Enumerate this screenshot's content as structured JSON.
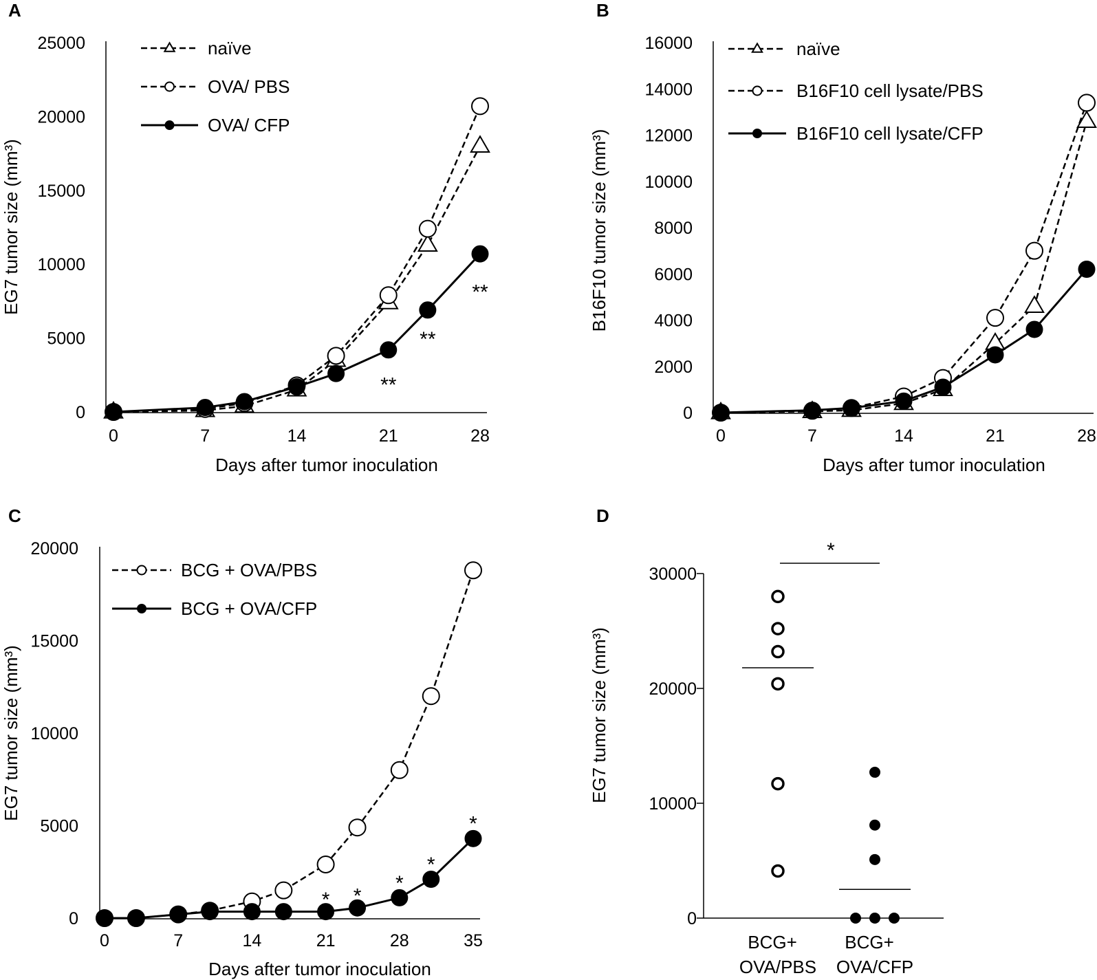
{
  "chart_data": [
    {
      "panel": "A",
      "type": "line",
      "xlabel": "Days after tumor inoculation",
      "ylabel": "EG7 tumor size (mm³)",
      "xlim": [
        0,
        28
      ],
      "ylim": [
        0,
        25000
      ],
      "xticks": [
        "0",
        "7",
        "14",
        "21",
        "28"
      ],
      "yticks": [
        "0",
        "5000",
        "10000",
        "15000",
        "20000",
        "25000"
      ],
      "series": [
        {
          "name": "naïve",
          "marker": "triangle",
          "style": "dashed",
          "x": [
            0,
            7,
            10,
            14,
            17,
            21,
            24,
            28
          ],
          "y": [
            0,
            100,
            400,
            1500,
            3500,
            7400,
            11300,
            18000
          ]
        },
        {
          "name": "OVA/ PBS",
          "marker": "circle-open",
          "style": "dashed",
          "x": [
            0,
            7,
            10,
            14,
            17,
            21,
            24,
            28
          ],
          "y": [
            0,
            200,
            600,
            1800,
            3800,
            7900,
            12400,
            20700
          ]
        },
        {
          "name": "OVA/ CFP",
          "marker": "circle-filled",
          "style": "solid",
          "x": [
            0,
            7,
            10,
            14,
            17,
            21,
            24,
            28
          ],
          "y": [
            0,
            300,
            700,
            1700,
            2600,
            4200,
            6900,
            10700
          ]
        }
      ],
      "annotations": [
        {
          "text": "**",
          "x": 21,
          "y": 2200
        },
        {
          "text": "**",
          "x": 24,
          "y": 5300
        },
        {
          "text": "**",
          "x": 28,
          "y": 8500
        }
      ]
    },
    {
      "panel": "B",
      "type": "line",
      "xlabel": "Days after tumor inoculation",
      "ylabel": "B16F10 tumor size (mm³)",
      "xlim": [
        0,
        28
      ],
      "ylim": [
        0,
        16000
      ],
      "xticks": [
        "0",
        "7",
        "14",
        "21",
        "28"
      ],
      "yticks": [
        "0",
        "2000",
        "4000",
        "6000",
        "8000",
        "10000",
        "12000",
        "14000",
        "16000"
      ],
      "series": [
        {
          "name": "naïve",
          "marker": "triangle",
          "style": "dashed",
          "x": [
            0,
            7,
            10,
            14,
            17,
            21,
            24,
            28
          ],
          "y": [
            0,
            50,
            100,
            400,
            1000,
            3000,
            4600,
            12600
          ]
        },
        {
          "name": "B16F10 cell lysate/PBS",
          "marker": "circle-open",
          "style": "dashed",
          "x": [
            0,
            7,
            10,
            14,
            17,
            21,
            24,
            28
          ],
          "y": [
            0,
            80,
            200,
            700,
            1500,
            4100,
            7000,
            13400
          ]
        },
        {
          "name": "B16F10 cell lysate/CFP",
          "marker": "circle-filled",
          "style": "solid",
          "x": [
            0,
            7,
            10,
            14,
            17,
            21,
            24,
            28
          ],
          "y": [
            0,
            100,
            200,
            500,
            1100,
            2500,
            3600,
            6200
          ]
        }
      ]
    },
    {
      "panel": "C",
      "type": "line",
      "xlabel": "Days after tumor inoculation",
      "ylabel": "EG7 tumor size (mm³)",
      "xlim": [
        0,
        35
      ],
      "ylim": [
        0,
        20000
      ],
      "xticks": [
        "0",
        "7",
        "14",
        "21",
        "28",
        "35"
      ],
      "yticks": [
        "0",
        "5000",
        "10000",
        "15000",
        "20000"
      ],
      "series": [
        {
          "name": "BCG + OVA/PBS",
          "marker": "circle-open",
          "style": "dashed",
          "x": [
            0,
            3,
            7,
            10,
            14,
            17,
            21,
            24,
            28,
            31,
            35
          ],
          "y": [
            0,
            0,
            200,
            400,
            900,
            1500,
            2900,
            4900,
            8000,
            12000,
            18800
          ]
        },
        {
          "name": "BCG + OVA/CFP",
          "marker": "circle-filled",
          "style": "solid",
          "x": [
            0,
            3,
            7,
            10,
            14,
            17,
            21,
            24,
            28,
            31,
            35
          ],
          "y": [
            0,
            0,
            200,
            350,
            350,
            350,
            350,
            550,
            1100,
            2100,
            4300
          ]
        }
      ],
      "annotations": [
        {
          "text": "*",
          "x": 21,
          "y": 1300
        },
        {
          "text": "*",
          "x": 24,
          "y": 1500
        },
        {
          "text": "*",
          "x": 28,
          "y": 2200
        },
        {
          "text": "*",
          "x": 31,
          "y": 3200
        },
        {
          "text": "*",
          "x": 35,
          "y": 5400
        }
      ]
    },
    {
      "panel": "D",
      "type": "scatter",
      "ylabel": "EG7 tumor size (mm³)",
      "ylim": [
        0,
        30000
      ],
      "yticks": [
        "0",
        "10000",
        "20000",
        "30000"
      ],
      "categories": [
        "BCG+ OVA/PBS",
        "BCG+ OVA/CFP"
      ],
      "category_lines": [
        [
          "BCG+",
          "OVA/PBS"
        ],
        [
          "BCG+",
          "OVA/CFP"
        ]
      ],
      "series": [
        {
          "name": "BCG+ OVA/PBS",
          "marker": "circle-open",
          "values": [
            28000,
            25200,
            23200,
            20400,
            11700,
            4100
          ],
          "mean": 21800
        },
        {
          "name": "BCG+ OVA/CFP",
          "marker": "circle-filled",
          "values": [
            12700,
            8100,
            5100,
            0,
            0,
            0
          ],
          "mean": 2500
        }
      ],
      "significance": "*"
    }
  ],
  "colors": {
    "ink": "#000000",
    "background": "#ffffff"
  }
}
